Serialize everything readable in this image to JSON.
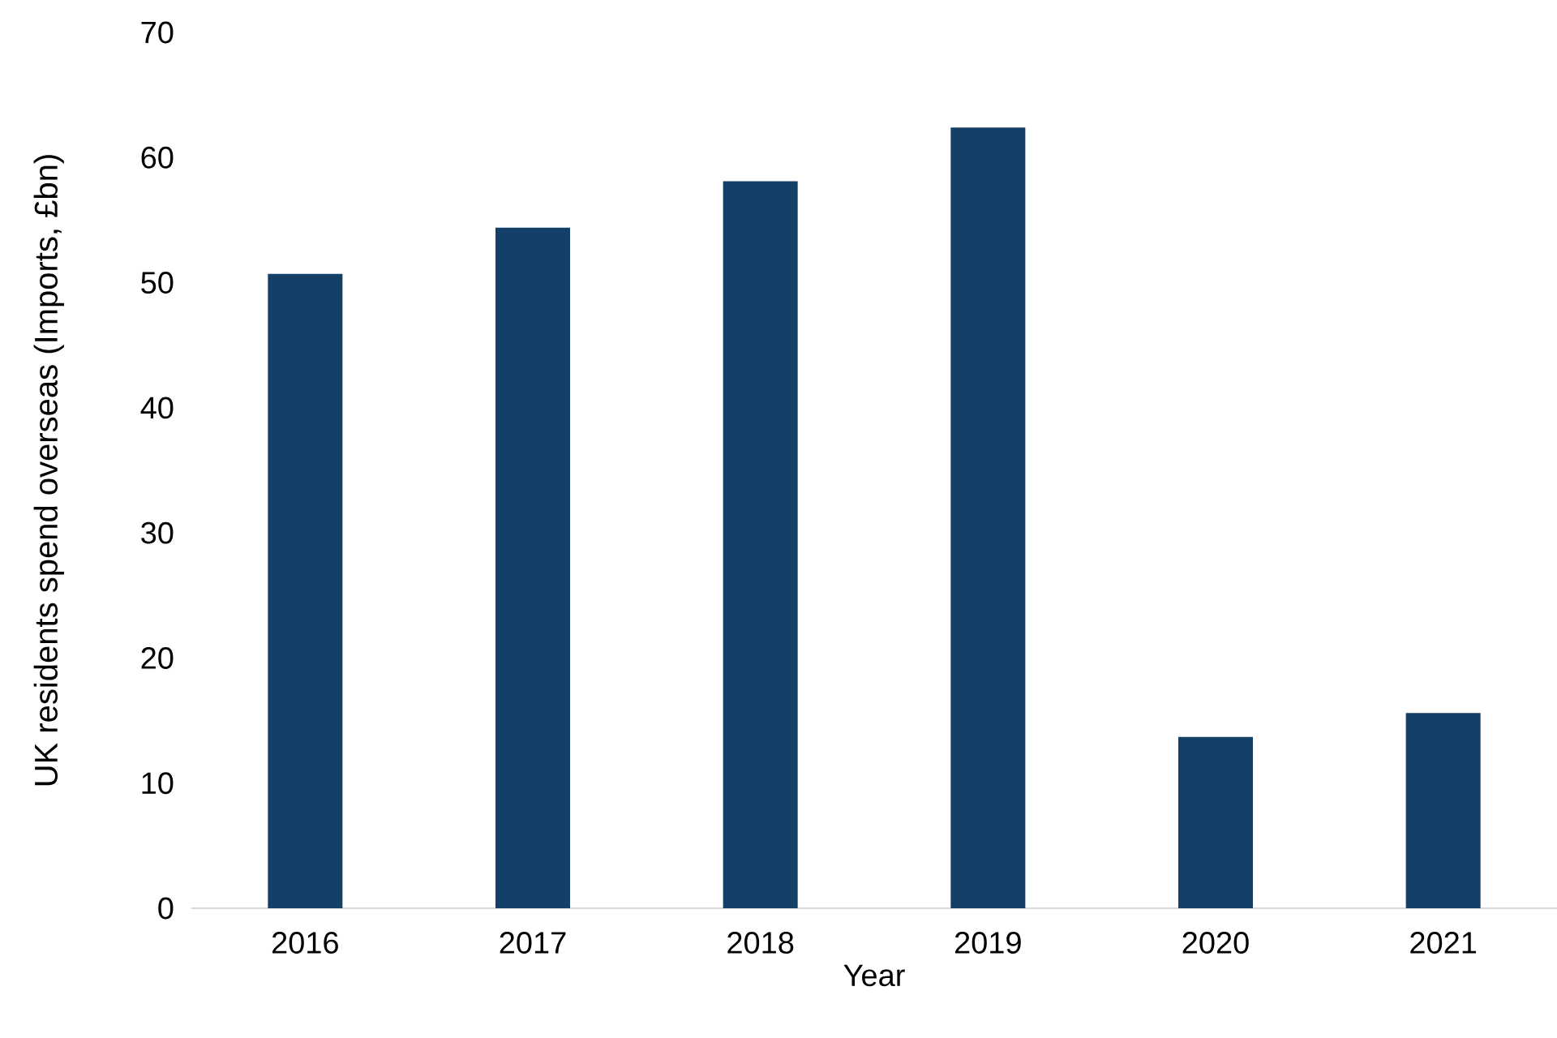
{
  "chart_data": {
    "type": "bar",
    "xlabel": "Year",
    "ylabel": "UK residents spend overseas (Imports, £bn)",
    "categories": [
      "2016",
      "2017",
      "2018",
      "2019",
      "2020",
      "2021"
    ],
    "values": [
      50.7,
      54.4,
      58.1,
      62.4,
      13.7,
      15.6
    ],
    "color": "#143f66",
    "ylim": [
      0,
      70
    ],
    "yticks": [
      0,
      10,
      20,
      30,
      40,
      50,
      60,
      70
    ],
    "grid": false
  }
}
